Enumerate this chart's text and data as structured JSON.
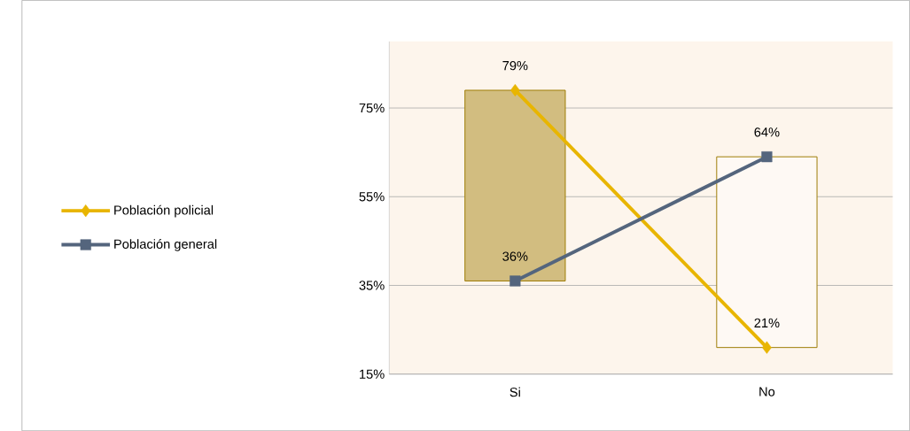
{
  "chart_data": {
    "type": "line",
    "categories": [
      "Si",
      "No"
    ],
    "series": [
      {
        "type": "bar",
        "base": [
          36,
          21
        ],
        "values": [
          43,
          43
        ],
        "colors": [
          "#d2bd80",
          "#fef9f4"
        ]
      },
      {
        "name": "Población policial",
        "color": "#e8b500",
        "marker": "diamond",
        "values": [
          79,
          21
        ],
        "value_labels": [
          "79%",
          "21%"
        ]
      },
      {
        "name": "Población general",
        "color": "#54657d",
        "marker": "square",
        "values": [
          36,
          64
        ],
        "value_labels": [
          "36%",
          "64%"
        ]
      }
    ],
    "ylim": [
      15,
      90
    ],
    "yticks": [
      {
        "value": 15,
        "label": "15%"
      },
      {
        "value": 35,
        "label": "35%"
      },
      {
        "value": 55,
        "label": "55%"
      },
      {
        "value": 75,
        "label": "75%"
      }
    ],
    "grid": "y",
    "legend": "left"
  }
}
